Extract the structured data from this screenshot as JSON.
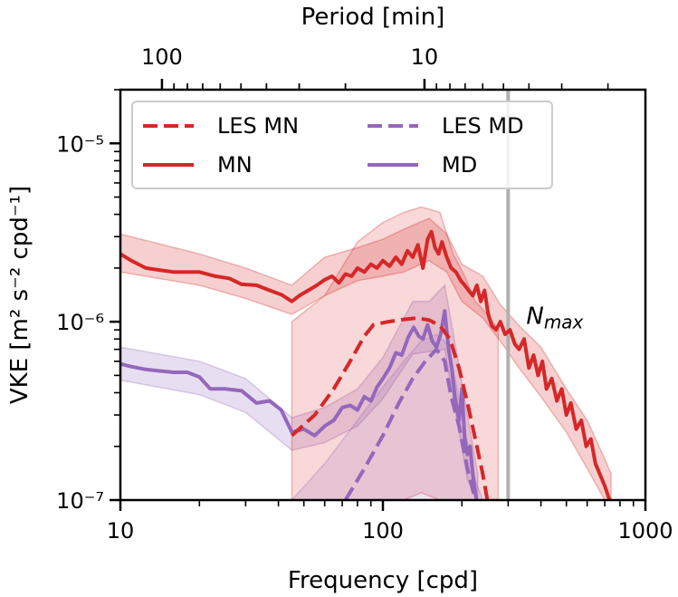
{
  "chart_data": {
    "type": "line",
    "xscale": "log",
    "yscale": "log",
    "xlim": [
      10,
      1000
    ],
    "ylim": [
      1e-07,
      2e-05
    ],
    "xlabel": "Frequency [cpd]",
    "ylabel": "VKE [m² s⁻² cpd⁻¹]",
    "x_ticks": [
      {
        "value": 10,
        "label": "10"
      },
      {
        "value": 100,
        "label": "100"
      },
      {
        "value": 1000,
        "label": "1000"
      }
    ],
    "y_ticks": [
      {
        "value": 1e-07,
        "label": "10⁻⁷"
      },
      {
        "value": 1e-06,
        "label": "10⁻⁶"
      },
      {
        "value": 1e-05,
        "label": "10⁻⁵"
      }
    ],
    "top_axis": {
      "label": "Period [min]",
      "ticks": [
        {
          "value": 100,
          "label": "100"
        },
        {
          "value": 10,
          "label": "10"
        }
      ]
    },
    "vline": {
      "x": 300,
      "label": "N",
      "label_sub": "max",
      "color": "#b0b0b0"
    },
    "legend": {
      "position": "top-left",
      "entries": [
        {
          "name": "LES MN",
          "color": "#d62728",
          "dash": true
        },
        {
          "name": "LES MD",
          "color": "#9467bd",
          "dash": true
        },
        {
          "name": "MN",
          "color": "#d62728",
          "dash": false
        },
        {
          "name": "MD",
          "color": "#9467bd",
          "dash": false
        }
      ]
    },
    "series": [
      {
        "name": "MN",
        "color": "#d62728",
        "dash": false,
        "points": [
          [
            10,
            2.4e-06
          ],
          [
            11,
            2.2e-06
          ],
          [
            12.5,
            2e-06
          ],
          [
            14,
            1.95e-06
          ],
          [
            16,
            1.9e-06
          ],
          [
            18,
            1.9e-06
          ],
          [
            20,
            1.9e-06
          ],
          [
            23,
            1.8e-06
          ],
          [
            26,
            1.75e-06
          ],
          [
            29,
            1.62e-06
          ],
          [
            33,
            1.6e-06
          ],
          [
            37,
            1.5e-06
          ],
          [
            41,
            1.42e-06
          ],
          [
            45,
            1.3e-06
          ],
          [
            48,
            1.4e-06
          ],
          [
            52,
            1.5e-06
          ],
          [
            56,
            1.6e-06
          ],
          [
            60,
            1.72e-06
          ],
          [
            64,
            1.8e-06
          ],
          [
            68,
            1.65e-06
          ],
          [
            72,
            1.85e-06
          ],
          [
            76,
            1.8e-06
          ],
          [
            80,
            2e-06
          ],
          [
            85,
            1.9e-06
          ],
          [
            90,
            2.1e-06
          ],
          [
            95,
            2e-06
          ],
          [
            100,
            2.2e-06
          ],
          [
            106,
            2.05e-06
          ],
          [
            112,
            2.3e-06
          ],
          [
            118,
            2.1e-06
          ],
          [
            124,
            2.5e-06
          ],
          [
            130,
            2.3e-06
          ],
          [
            136,
            2.7e-06
          ],
          [
            142,
            2e-06
          ],
          [
            148,
            2.9e-06
          ],
          [
            153,
            3.2e-06
          ],
          [
            158,
            2.6e-06
          ],
          [
            163,
            2.4e-06
          ],
          [
            168,
            2.8e-06
          ],
          [
            175,
            2.3e-06
          ],
          [
            182,
            2e-06
          ],
          [
            190,
            1.9e-06
          ],
          [
            198,
            1.7e-06
          ],
          [
            205,
            1.6e-06
          ],
          [
            212,
            1.5e-06
          ],
          [
            220,
            1.4e-06
          ],
          [
            228,
            1.6e-06
          ],
          [
            236,
            1.3e-06
          ],
          [
            244,
            1.5e-06
          ],
          [
            252,
            1.1e-06
          ],
          [
            260,
            9.5e-07
          ],
          [
            270,
            9e-07
          ],
          [
            280,
            1e-06
          ],
          [
            292,
            8.5e-07
          ],
          [
            305,
            9e-07
          ],
          [
            318,
            7.5e-07
          ],
          [
            330,
            7e-07
          ],
          [
            345,
            8e-07
          ],
          [
            360,
            5.5e-07
          ],
          [
            375,
            6.5e-07
          ],
          [
            390,
            5e-07
          ],
          [
            405,
            6e-07
          ],
          [
            420,
            4.2e-07
          ],
          [
            440,
            4.8e-07
          ],
          [
            460,
            3.6e-07
          ],
          [
            480,
            4.2e-07
          ],
          [
            500,
            3e-07
          ],
          [
            520,
            3.5e-07
          ],
          [
            545,
            2.5e-07
          ],
          [
            570,
            2.8e-07
          ],
          [
            595,
            2e-07
          ],
          [
            620,
            2.2e-07
          ],
          [
            645,
            1.6e-07
          ],
          [
            670,
            1.4e-07
          ],
          [
            700,
            1.2e-07
          ],
          [
            730,
            1e-07
          ]
        ],
        "band": [
          [
            10,
            1.9e-06,
            3.1e-06
          ],
          [
            20,
            1.6e-06,
            2.4e-06
          ],
          [
            30,
            1.35e-06,
            2e-06
          ],
          [
            45,
            1.1e-06,
            1.6e-06
          ],
          [
            60,
            1.4e-06,
            2.3e-06
          ],
          [
            80,
            1.7e-06,
            2.6e-06
          ],
          [
            100,
            1.8e-06,
            2.9e-06
          ],
          [
            120,
            1.9e-06,
            3.3e-06
          ],
          [
            150,
            2.2e-06,
            3.8e-06
          ],
          [
            175,
            1.9e-06,
            3.1e-06
          ],
          [
            200,
            1.3e-06,
            2.1e-06
          ],
          [
            240,
            1.05e-06,
            1.8e-06
          ],
          [
            280,
            7.8e-07,
            1.25e-06
          ],
          [
            330,
            5.5e-07,
            9.5e-07
          ],
          [
            400,
            3.8e-07,
            7.2e-07
          ],
          [
            500,
            2.4e-07,
            4.2e-07
          ],
          [
            600,
            1.5e-07,
            2.8e-07
          ],
          [
            700,
            1e-07,
            1.7e-07
          ],
          [
            740,
            9e-08,
            1.4e-07
          ]
        ]
      },
      {
        "name": "MD",
        "color": "#9467bd",
        "dash": false,
        "points": [
          [
            10,
            5.8e-07
          ],
          [
            11,
            5.6e-07
          ],
          [
            12.5,
            5.4e-07
          ],
          [
            14,
            5.3e-07
          ],
          [
            16,
            5.2e-07
          ],
          [
            18,
            5.2e-07
          ],
          [
            20,
            4.9e-07
          ],
          [
            22,
            4.2e-07
          ],
          [
            25,
            4.2e-07
          ],
          [
            29,
            4.1e-07
          ],
          [
            33,
            3.5e-07
          ],
          [
            37,
            3.6e-07
          ],
          [
            41,
            3.2e-07
          ],
          [
            45,
            2.4e-07
          ],
          [
            50,
            2.5e-07
          ],
          [
            55,
            2.3e-07
          ],
          [
            60,
            2.6e-07
          ],
          [
            65,
            2.8e-07
          ],
          [
            70,
            3.3e-07
          ],
          [
            75,
            3.4e-07
          ],
          [
            80,
            3.2e-07
          ],
          [
            85,
            3.8e-07
          ],
          [
            90,
            3.6e-07
          ],
          [
            95,
            4.3e-07
          ],
          [
            100,
            4.8e-07
          ],
          [
            106,
            5.5e-07
          ],
          [
            112,
            6.7e-07
          ],
          [
            118,
            6.5e-07
          ],
          [
            125,
            8.2e-07
          ],
          [
            131,
            9.3e-07
          ],
          [
            137,
            8.3e-07
          ],
          [
            142,
            8e-07
          ],
          [
            148,
            9.6e-07
          ],
          [
            154,
            7.8e-07
          ],
          [
            160,
            7.2e-07
          ],
          [
            166,
            8.5e-07
          ],
          [
            172,
            1.15e-06
          ],
          [
            178,
            7e-07
          ],
          [
            183,
            5.5e-07
          ],
          [
            188,
            3.8e-07
          ],
          [
            195,
            2.8e-07
          ],
          [
            200,
            4.2e-07
          ],
          [
            205,
            2.2e-07
          ],
          [
            210,
            1.8e-07
          ],
          [
            215,
            2e-07
          ],
          [
            220,
            1.4e-07
          ],
          [
            225,
            1.1e-07
          ],
          [
            230,
            9e-08
          ]
        ],
        "band": [
          [
            10,
            4.7e-07,
            7.2e-07
          ],
          [
            20,
            3.9e-07,
            6e-07
          ],
          [
            30,
            3.1e-07,
            4.8e-07
          ],
          [
            45,
            1.9e-07,
            2.9e-07
          ],
          [
            60,
            2.1e-07,
            3.3e-07
          ],
          [
            80,
            2.6e-07,
            4.2e-07
          ],
          [
            100,
            3.7e-07,
            6.3e-07
          ],
          [
            130,
            6.6e-07,
            1.3e-06
          ],
          [
            150,
            6.8e-07,
            1.3e-06
          ],
          [
            172,
            7e-07,
            1.6e-06
          ],
          [
            190,
            3e-07,
            7e-07
          ],
          [
            210,
            1.3e-07,
            3e-07
          ],
          [
            230,
            8e-08,
            1.4e-07
          ]
        ]
      },
      {
        "name": "LES MN",
        "color": "#d62728",
        "dash": true,
        "points": [
          [
            45,
            2.3e-07
          ],
          [
            55,
            3e-07
          ],
          [
            65,
            4.2e-07
          ],
          [
            75,
            6e-07
          ],
          [
            85,
            8.3e-07
          ],
          [
            92,
            9.6e-07
          ],
          [
            105,
            1e-06
          ],
          [
            120,
            1.03e-06
          ],
          [
            135,
            1.05e-06
          ],
          [
            150,
            1.02e-06
          ],
          [
            165,
            9.5e-07
          ],
          [
            180,
            8e-07
          ],
          [
            195,
            5.5e-07
          ],
          [
            210,
            3.5e-07
          ],
          [
            225,
            2.2e-07
          ],
          [
            240,
            1.4e-07
          ],
          [
            250,
            1e-07
          ]
        ],
        "band": [
          [
            45,
            1e-07,
            1e-06
          ],
          [
            60,
            1e-07,
            1.4e-06
          ],
          [
            80,
            1e-07,
            2.8e-06
          ],
          [
            100,
            1e-07,
            3.6e-06
          ],
          [
            120,
            1e-07,
            4.1e-06
          ],
          [
            140,
            1.1e-07,
            4.4e-06
          ],
          [
            165,
            1e-07,
            4.1e-06
          ],
          [
            185,
            1e-07,
            2.4e-06
          ],
          [
            205,
            1e-07,
            1.8e-06
          ],
          [
            225,
            1e-07,
            1.3e-06
          ],
          [
            250,
            1e-07,
            1.1e-06
          ],
          [
            275,
            1e-07,
            9e-07
          ]
        ]
      },
      {
        "name": "LES MD",
        "color": "#9467bd",
        "dash": true,
        "points": [
          [
            72,
            1e-07
          ],
          [
            85,
            1.5e-07
          ],
          [
            100,
            2.3e-07
          ],
          [
            115,
            3.5e-07
          ],
          [
            130,
            4.8e-07
          ],
          [
            145,
            6e-07
          ],
          [
            160,
            7e-07
          ],
          [
            172,
            6e-07
          ],
          [
            182,
            3.8e-07
          ],
          [
            195,
            2.6e-07
          ],
          [
            210,
            1.5e-07
          ],
          [
            225,
            1e-07
          ]
        ],
        "band": [
          [
            45,
            1e-07,
            1e-07
          ],
          [
            60,
            1e-07,
            1.6e-07
          ],
          [
            80,
            1e-07,
            2.8e-07
          ],
          [
            100,
            1e-07,
            4.3e-07
          ],
          [
            120,
            1e-07,
            6e-07
          ],
          [
            140,
            1e-07,
            7.8e-07
          ],
          [
            160,
            1e-07,
            8.5e-07
          ],
          [
            175,
            1e-07,
            7.5e-07
          ],
          [
            190,
            1e-07,
            4.5e-07
          ],
          [
            205,
            1e-07,
            2.5e-07
          ],
          [
            225,
            1e-07,
            1.3e-07
          ],
          [
            240,
            1e-07,
            1e-07
          ]
        ]
      }
    ]
  }
}
